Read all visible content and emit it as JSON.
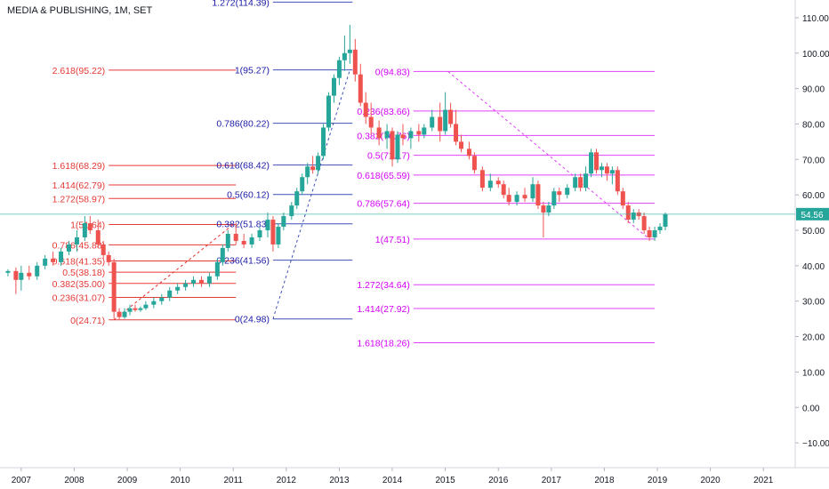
{
  "chart_title": "MEDIA & PUBLISHING, 1M, SET",
  "current_price_label": "54.56",
  "colors": {
    "up": "#26a69a",
    "down": "#ef5350",
    "fib_red": "#e53935",
    "fib_blue": "#1a1aa6",
    "fib_blue_line": "#3f51b5",
    "fib_magenta": "#e040fb",
    "fib_magenta_text": "#d500f9",
    "price_line": "#26a69a",
    "price_label_bg": "#26a69a",
    "axis_text": "#131722"
  },
  "chart_data": {
    "type": "candlestick",
    "title": "MEDIA & PUBLISHING, 1M, SET",
    "x_axis": {
      "type": "time",
      "range": [
        2006.6,
        2021.6
      ],
      "tick_labels": [
        "2007",
        "2008",
        "2009",
        "2010",
        "2011",
        "2012",
        "2013",
        "2014",
        "2015",
        "2016",
        "2017",
        "2018",
        "2019",
        "2020",
        "2021"
      ]
    },
    "y_axis": {
      "range": [
        -17,
        115
      ],
      "tick_values": [
        -10,
        0,
        10,
        20,
        30,
        40,
        50,
        60,
        70,
        80,
        90,
        100,
        110
      ],
      "tick_labels": [
        "−10.00",
        "0.00",
        "10.00",
        "20.00",
        "30.00",
        "40.00",
        "50.00",
        "60.00",
        "70.00",
        "80.00",
        "90.00",
        "100.00",
        "110.00"
      ]
    },
    "last_price": 54.56,
    "ohlc_series": [
      {
        "t": 2006.75,
        "o": 38,
        "h": 39,
        "l": 37,
        "c": 38.5
      },
      {
        "t": 2006.9,
        "o": 38.5,
        "h": 39.5,
        "l": 32,
        "c": 36
      },
      {
        "t": 2007.0,
        "o": 36,
        "h": 40,
        "l": 33,
        "c": 38
      },
      {
        "t": 2007.15,
        "o": 38,
        "h": 40,
        "l": 36,
        "c": 37
      },
      {
        "t": 2007.3,
        "o": 37,
        "h": 41,
        "l": 36,
        "c": 40
      },
      {
        "t": 2007.45,
        "o": 40,
        "h": 43,
        "l": 39,
        "c": 42
      },
      {
        "t": 2007.6,
        "o": 42,
        "h": 44,
        "l": 40,
        "c": 41
      },
      {
        "t": 2007.75,
        "o": 41,
        "h": 45,
        "l": 40,
        "c": 44
      },
      {
        "t": 2007.9,
        "o": 44,
        "h": 47,
        "l": 43,
        "c": 46
      },
      {
        "t": 2008.05,
        "o": 46,
        "h": 50,
        "l": 44,
        "c": 48
      },
      {
        "t": 2008.2,
        "o": 48,
        "h": 54,
        "l": 47,
        "c": 52
      },
      {
        "t": 2008.3,
        "o": 52,
        "h": 54,
        "l": 49,
        "c": 50
      },
      {
        "t": 2008.45,
        "o": 50,
        "h": 53,
        "l": 45,
        "c": 46
      },
      {
        "t": 2008.55,
        "o": 46,
        "h": 47,
        "l": 42,
        "c": 43
      },
      {
        "t": 2008.65,
        "o": 43,
        "h": 44,
        "l": 40,
        "c": 41
      },
      {
        "t": 2008.75,
        "o": 41,
        "h": 42,
        "l": 25,
        "c": 27
      },
      {
        "t": 2008.85,
        "o": 27,
        "h": 28,
        "l": 24.7,
        "c": 25.5
      },
      {
        "t": 2008.95,
        "o": 25.5,
        "h": 28,
        "l": 25,
        "c": 27
      },
      {
        "t": 2009.05,
        "o": 27,
        "h": 29,
        "l": 26,
        "c": 28
      },
      {
        "t": 2009.15,
        "o": 28,
        "h": 29,
        "l": 27,
        "c": 27.5
      },
      {
        "t": 2009.25,
        "o": 27.5,
        "h": 28.5,
        "l": 27,
        "c": 28
      },
      {
        "t": 2009.35,
        "o": 28,
        "h": 30,
        "l": 27.5,
        "c": 29
      },
      {
        "t": 2009.5,
        "o": 29,
        "h": 31,
        "l": 28,
        "c": 30
      },
      {
        "t": 2009.65,
        "o": 30,
        "h": 32,
        "l": 29,
        "c": 31
      },
      {
        "t": 2009.8,
        "o": 31,
        "h": 34,
        "l": 30,
        "c": 33
      },
      {
        "t": 2009.95,
        "o": 33,
        "h": 35,
        "l": 32,
        "c": 34
      },
      {
        "t": 2010.1,
        "o": 34,
        "h": 36,
        "l": 33,
        "c": 35
      },
      {
        "t": 2010.25,
        "o": 35,
        "h": 37,
        "l": 34,
        "c": 36
      },
      {
        "t": 2010.4,
        "o": 36,
        "h": 37,
        "l": 34,
        "c": 35
      },
      {
        "t": 2010.55,
        "o": 35,
        "h": 38,
        "l": 34,
        "c": 37
      },
      {
        "t": 2010.7,
        "o": 37,
        "h": 42,
        "l": 36,
        "c": 41
      },
      {
        "t": 2010.8,
        "o": 41,
        "h": 46,
        "l": 40,
        "c": 45
      },
      {
        "t": 2010.9,
        "o": 45,
        "h": 50,
        "l": 44,
        "c": 49
      },
      {
        "t": 2011.05,
        "o": 49,
        "h": 52,
        "l": 46,
        "c": 47
      },
      {
        "t": 2011.2,
        "o": 47,
        "h": 49,
        "l": 45,
        "c": 46
      },
      {
        "t": 2011.35,
        "o": 46,
        "h": 49,
        "l": 45,
        "c": 48
      },
      {
        "t": 2011.5,
        "o": 48,
        "h": 51,
        "l": 47,
        "c": 50
      },
      {
        "t": 2011.65,
        "o": 50,
        "h": 55,
        "l": 48,
        "c": 53
      },
      {
        "t": 2011.75,
        "o": 53,
        "h": 54,
        "l": 44,
        "c": 46
      },
      {
        "t": 2011.85,
        "o": 46,
        "h": 52,
        "l": 45,
        "c": 51
      },
      {
        "t": 2011.95,
        "o": 51,
        "h": 55,
        "l": 50,
        "c": 54
      },
      {
        "t": 2012.1,
        "o": 54,
        "h": 58,
        "l": 53,
        "c": 57
      },
      {
        "t": 2012.2,
        "o": 57,
        "h": 62,
        "l": 56,
        "c": 61
      },
      {
        "t": 2012.3,
        "o": 61,
        "h": 66,
        "l": 60,
        "c": 65
      },
      {
        "t": 2012.4,
        "o": 65,
        "h": 69,
        "l": 63,
        "c": 68
      },
      {
        "t": 2012.5,
        "o": 68,
        "h": 71,
        "l": 66,
        "c": 67
      },
      {
        "t": 2012.6,
        "o": 67,
        "h": 72,
        "l": 66,
        "c": 71
      },
      {
        "t": 2012.7,
        "o": 71,
        "h": 80,
        "l": 70,
        "c": 79
      },
      {
        "t": 2012.8,
        "o": 79,
        "h": 89,
        "l": 78,
        "c": 88
      },
      {
        "t": 2012.9,
        "o": 88,
        "h": 94,
        "l": 86,
        "c": 93
      },
      {
        "t": 2013.0,
        "o": 93,
        "h": 99,
        "l": 91,
        "c": 98
      },
      {
        "t": 2013.1,
        "o": 98,
        "h": 105,
        "l": 95,
        "c": 100
      },
      {
        "t": 2013.2,
        "o": 100,
        "h": 108,
        "l": 97,
        "c": 101
      },
      {
        "t": 2013.3,
        "o": 101,
        "h": 104,
        "l": 92,
        "c": 94
      },
      {
        "t": 2013.4,
        "o": 94,
        "h": 97,
        "l": 85,
        "c": 86
      },
      {
        "t": 2013.5,
        "o": 86,
        "h": 89,
        "l": 80,
        "c": 82
      },
      {
        "t": 2013.6,
        "o": 82,
        "h": 86,
        "l": 77,
        "c": 79
      },
      {
        "t": 2013.75,
        "o": 79,
        "h": 81,
        "l": 74,
        "c": 76
      },
      {
        "t": 2013.9,
        "o": 76,
        "h": 80,
        "l": 73,
        "c": 78
      },
      {
        "t": 2014.0,
        "o": 78,
        "h": 79,
        "l": 68,
        "c": 70
      },
      {
        "t": 2014.1,
        "o": 70,
        "h": 78,
        "l": 69,
        "c": 77
      },
      {
        "t": 2014.2,
        "o": 77,
        "h": 80,
        "l": 74,
        "c": 76
      },
      {
        "t": 2014.35,
        "o": 76,
        "h": 79,
        "l": 73,
        "c": 78
      },
      {
        "t": 2014.5,
        "o": 78,
        "h": 80,
        "l": 75,
        "c": 77
      },
      {
        "t": 2014.6,
        "o": 77,
        "h": 80,
        "l": 76,
        "c": 79
      },
      {
        "t": 2014.75,
        "o": 79,
        "h": 84,
        "l": 78,
        "c": 82
      },
      {
        "t": 2014.9,
        "o": 82,
        "h": 86,
        "l": 75,
        "c": 78
      },
      {
        "t": 2015.0,
        "o": 78,
        "h": 89,
        "l": 77,
        "c": 84
      },
      {
        "t": 2015.1,
        "o": 84,
        "h": 86,
        "l": 79,
        "c": 80
      },
      {
        "t": 2015.2,
        "o": 80,
        "h": 84,
        "l": 74,
        "c": 75
      },
      {
        "t": 2015.3,
        "o": 75,
        "h": 77,
        "l": 72,
        "c": 73
      },
      {
        "t": 2015.45,
        "o": 73,
        "h": 75,
        "l": 70,
        "c": 71
      },
      {
        "t": 2015.55,
        "o": 71,
        "h": 72,
        "l": 66,
        "c": 67
      },
      {
        "t": 2015.7,
        "o": 67,
        "h": 68,
        "l": 61,
        "c": 62
      },
      {
        "t": 2015.85,
        "o": 62,
        "h": 66,
        "l": 61,
        "c": 64
      },
      {
        "t": 2016.0,
        "o": 64,
        "h": 65,
        "l": 62,
        "c": 63
      },
      {
        "t": 2016.1,
        "o": 63,
        "h": 64,
        "l": 59,
        "c": 60
      },
      {
        "t": 2016.2,
        "o": 60,
        "h": 62,
        "l": 57,
        "c": 58
      },
      {
        "t": 2016.35,
        "o": 58,
        "h": 61,
        "l": 57,
        "c": 60
      },
      {
        "t": 2016.5,
        "o": 60,
        "h": 62,
        "l": 58,
        "c": 59
      },
      {
        "t": 2016.65,
        "o": 59,
        "h": 65,
        "l": 58,
        "c": 63
      },
      {
        "t": 2016.75,
        "o": 63,
        "h": 64,
        "l": 56,
        "c": 57
      },
      {
        "t": 2016.85,
        "o": 57,
        "h": 58,
        "l": 48,
        "c": 55
      },
      {
        "t": 2016.95,
        "o": 55,
        "h": 58,
        "l": 54,
        "c": 57
      },
      {
        "t": 2017.05,
        "o": 57,
        "h": 62,
        "l": 56,
        "c": 61
      },
      {
        "t": 2017.15,
        "o": 61,
        "h": 62,
        "l": 58,
        "c": 60
      },
      {
        "t": 2017.3,
        "o": 60,
        "h": 63,
        "l": 59,
        "c": 62
      },
      {
        "t": 2017.45,
        "o": 62,
        "h": 66,
        "l": 61,
        "c": 65
      },
      {
        "t": 2017.55,
        "o": 65,
        "h": 66,
        "l": 61,
        "c": 62
      },
      {
        "t": 2017.65,
        "o": 62,
        "h": 68,
        "l": 61,
        "c": 66
      },
      {
        "t": 2017.75,
        "o": 66,
        "h": 73,
        "l": 65,
        "c": 72
      },
      {
        "t": 2017.85,
        "o": 72,
        "h": 73,
        "l": 66,
        "c": 67
      },
      {
        "t": 2017.95,
        "o": 67,
        "h": 69,
        "l": 65,
        "c": 68
      },
      {
        "t": 2018.05,
        "o": 68,
        "h": 69,
        "l": 64,
        "c": 66
      },
      {
        "t": 2018.15,
        "o": 66,
        "h": 68,
        "l": 63,
        "c": 67
      },
      {
        "t": 2018.25,
        "o": 67,
        "h": 68,
        "l": 60,
        "c": 61
      },
      {
        "t": 2018.35,
        "o": 61,
        "h": 62,
        "l": 56,
        "c": 57
      },
      {
        "t": 2018.45,
        "o": 57,
        "h": 58,
        "l": 52,
        "c": 53
      },
      {
        "t": 2018.55,
        "o": 53,
        "h": 56,
        "l": 52,
        "c": 55
      },
      {
        "t": 2018.65,
        "o": 55,
        "h": 56,
        "l": 53,
        "c": 54
      },
      {
        "t": 2018.75,
        "o": 54,
        "h": 55,
        "l": 49,
        "c": 50
      },
      {
        "t": 2018.85,
        "o": 50,
        "h": 51,
        "l": 47,
        "c": 48
      },
      {
        "t": 2018.95,
        "o": 48,
        "h": 51,
        "l": 47,
        "c": 50
      },
      {
        "t": 2019.05,
        "o": 50,
        "h": 52,
        "l": 49,
        "c": 51
      },
      {
        "t": 2019.15,
        "o": 51,
        "h": 55,
        "l": 50,
        "c": 54.56
      }
    ],
    "fib_sets": [
      {
        "name": "fib-red",
        "color_key": "fib_red",
        "x_start": 2008.65,
        "x_end": 2011.05,
        "levels": [
          {
            "label": "2.618(95.22)",
            "value": 95.22
          },
          {
            "label": "1.618(68.29)",
            "value": 68.29
          },
          {
            "label": "1.414(62.79)",
            "value": 62.79
          },
          {
            "label": "1.272(58.97)",
            "value": 58.97
          },
          {
            "label": "1(51.64)",
            "value": 51.64
          },
          {
            "label": "0.786(45.88)",
            "value": 45.88
          },
          {
            "label": "0.618(41.35)",
            "value": 41.35
          },
          {
            "label": "0.5(38.18)",
            "value": 38.18
          },
          {
            "label": "0.382(35.00)",
            "value": 35.0
          },
          {
            "label": "0.236(31.07)",
            "value": 31.07
          },
          {
            "label": "0(24.71)",
            "value": 24.71
          }
        ],
        "trend_from": {
          "t": 2008.75,
          "v": 24.71
        },
        "trend_to": {
          "t": 2011.0,
          "v": 51.64
        }
      },
      {
        "name": "fib-blue",
        "color_key": "fib_blue",
        "x_start": 2011.75,
        "x_end": 2013.25,
        "levels": [
          {
            "label": "1.272(114.39)",
            "value": 114.39
          },
          {
            "label": "1(95.27)",
            "value": 95.27
          },
          {
            "label": "0.786(80.22)",
            "value": 80.22
          },
          {
            "label": "0.618(68.42)",
            "value": 68.42
          },
          {
            "label": "0.5(60.12)",
            "value": 60.12
          },
          {
            "label": "0.382(51.83)",
            "value": 51.83
          },
          {
            "label": "0.236(41.56)",
            "value": 41.56
          },
          {
            "label": "0(24.98)",
            "value": 24.98
          }
        ],
        "trend_from": {
          "t": 2011.75,
          "v": 24.98
        },
        "trend_to": {
          "t": 2013.2,
          "v": 95.27
        }
      },
      {
        "name": "fib-magenta",
        "color_key": "fib_magenta",
        "x_start": 2014.4,
        "x_end": 2018.95,
        "levels": [
          {
            "label": "0(94.83)",
            "value": 94.83
          },
          {
            "label": "0.236(83.66)",
            "value": 83.66
          },
          {
            "label": "0.382(76.76)",
            "value": 76.76
          },
          {
            "label": "0.5(71.17)",
            "value": 71.17
          },
          {
            "label": "0.618(65.59)",
            "value": 65.59
          },
          {
            "label": "0.786(57.64)",
            "value": 57.64
          },
          {
            "label": "1(47.51)",
            "value": 47.51
          },
          {
            "label": "1.272(34.64)",
            "value": 34.64
          },
          {
            "label": "1.414(27.92)",
            "value": 27.92
          },
          {
            "label": "1.618(18.26)",
            "value": 18.26
          }
        ],
        "trend_from": {
          "t": 2015.05,
          "v": 94.83
        },
        "trend_to": {
          "t": 2018.85,
          "v": 47.51
        }
      }
    ]
  }
}
